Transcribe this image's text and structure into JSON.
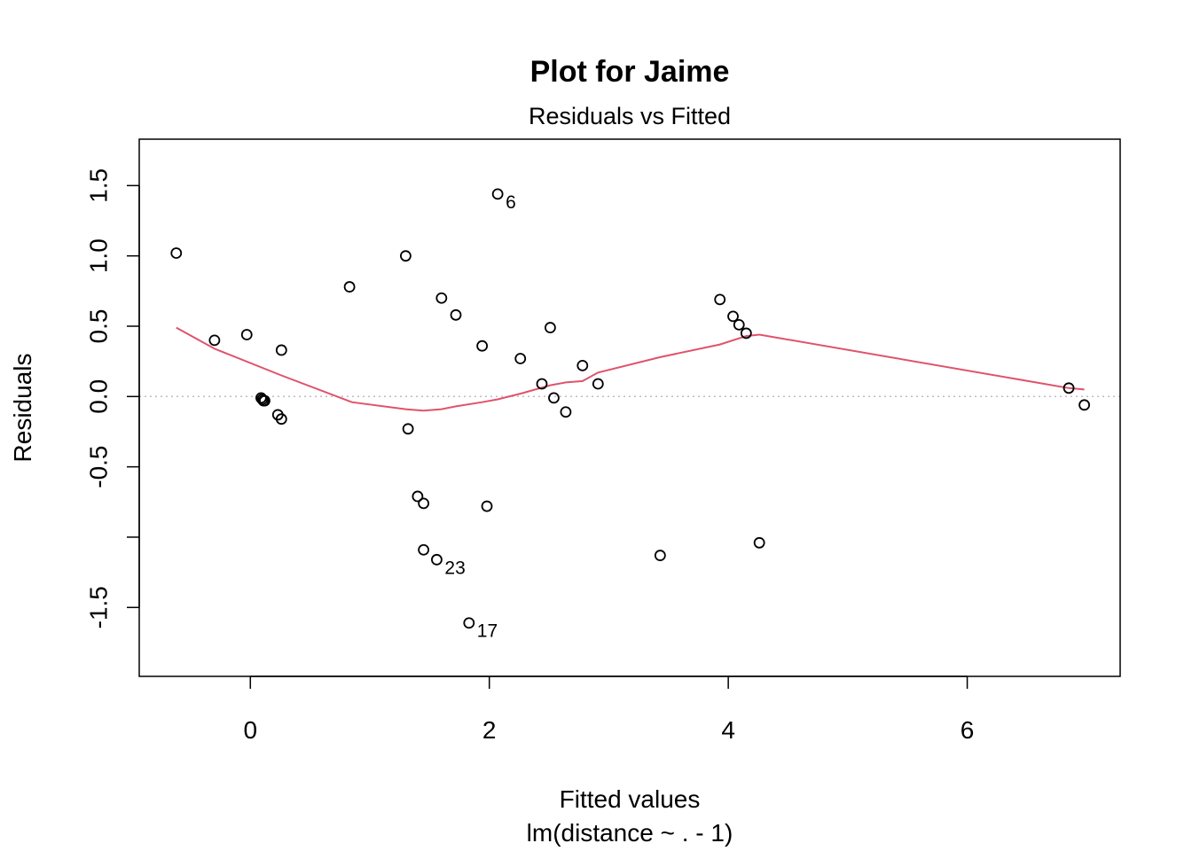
{
  "chart_data": {
    "type": "scatter",
    "title": "Plot for Jaime",
    "subtitle": "Residuals vs Fitted",
    "xlabel": "Fitted values",
    "xlabel2": "lm(distance ~ . - 1)",
    "ylabel": "Residuals",
    "xlim": [
      -0.93,
      7.28
    ],
    "ylim": [
      -1.99,
      1.83
    ],
    "x_ticks": [
      {
        "value": 0,
        "label": "0"
      },
      {
        "value": 2,
        "label": "2"
      },
      {
        "value": 4,
        "label": "4"
      },
      {
        "value": 6,
        "label": "6"
      }
    ],
    "y_ticks": [
      {
        "value": 1.5,
        "label": "1.5"
      },
      {
        "value": 1.0,
        "label": "1.0"
      },
      {
        "value": 0.5,
        "label": "0.5"
      },
      {
        "value": 0.0,
        "label": "0.0"
      },
      {
        "value": -0.5,
        "label": "-0.5"
      },
      {
        "value": -1.0,
        "label": ""
      },
      {
        "value": -1.5,
        "label": "-1.5"
      }
    ],
    "reference_line": {
      "y": 0,
      "color": "#bebebe",
      "style": "dotted"
    },
    "points": [
      {
        "x": -0.62,
        "y": 1.02
      },
      {
        "x": -0.3,
        "y": 0.4
      },
      {
        "x": -0.03,
        "y": 0.44
      },
      {
        "x": 0.09,
        "y": -0.01
      },
      {
        "x": 0.1,
        "y": -0.02
      },
      {
        "x": 0.11,
        "y": -0.03
      },
      {
        "x": 0.12,
        "y": -0.03
      },
      {
        "x": 0.23,
        "y": -0.13
      },
      {
        "x": 0.26,
        "y": -0.16
      },
      {
        "x": 0.26,
        "y": 0.33
      },
      {
        "x": 0.83,
        "y": 0.78
      },
      {
        "x": 1.3,
        "y": 1.0
      },
      {
        "x": 1.32,
        "y": -0.23
      },
      {
        "x": 1.4,
        "y": -0.71
      },
      {
        "x": 1.45,
        "y": -0.76
      },
      {
        "x": 1.45,
        "y": -1.09
      },
      {
        "x": 1.56,
        "y": -1.16,
        "label": "23"
      },
      {
        "x": 1.6,
        "y": 0.7
      },
      {
        "x": 1.72,
        "y": 0.58
      },
      {
        "x": 1.83,
        "y": -1.61,
        "label": "17"
      },
      {
        "x": 1.94,
        "y": 0.36
      },
      {
        "x": 1.98,
        "y": -0.78
      },
      {
        "x": 2.07,
        "y": 1.44,
        "label": "6"
      },
      {
        "x": 2.26,
        "y": 0.27
      },
      {
        "x": 2.44,
        "y": 0.09
      },
      {
        "x": 2.51,
        "y": 0.49
      },
      {
        "x": 2.54,
        "y": -0.01
      },
      {
        "x": 2.64,
        "y": -0.11
      },
      {
        "x": 2.78,
        "y": 0.22
      },
      {
        "x": 2.91,
        "y": 0.09
      },
      {
        "x": 3.43,
        "y": -1.13
      },
      {
        "x": 3.93,
        "y": 0.69
      },
      {
        "x": 4.04,
        "y": 0.57
      },
      {
        "x": 4.09,
        "y": 0.51
      },
      {
        "x": 4.15,
        "y": 0.45
      },
      {
        "x": 4.26,
        "y": -1.04
      },
      {
        "x": 6.85,
        "y": 0.06
      },
      {
        "x": 6.98,
        "y": -0.06
      }
    ],
    "smoother": {
      "color": "#df536b",
      "x": [
        -0.62,
        -0.3,
        0.26,
        0.85,
        1.3,
        1.45,
        1.6,
        1.72,
        1.94,
        2.07,
        2.26,
        2.51,
        2.64,
        2.78,
        2.91,
        3.43,
        3.93,
        4.15,
        4.26,
        6.85,
        6.98
      ],
      "y": [
        0.49,
        0.34,
        0.15,
        -0.04,
        -0.09,
        -0.1,
        -0.09,
        -0.07,
        -0.04,
        -0.02,
        0.02,
        0.08,
        0.1,
        0.11,
        0.17,
        0.28,
        0.37,
        0.43,
        0.44,
        0.06,
        0.05
      ]
    }
  }
}
